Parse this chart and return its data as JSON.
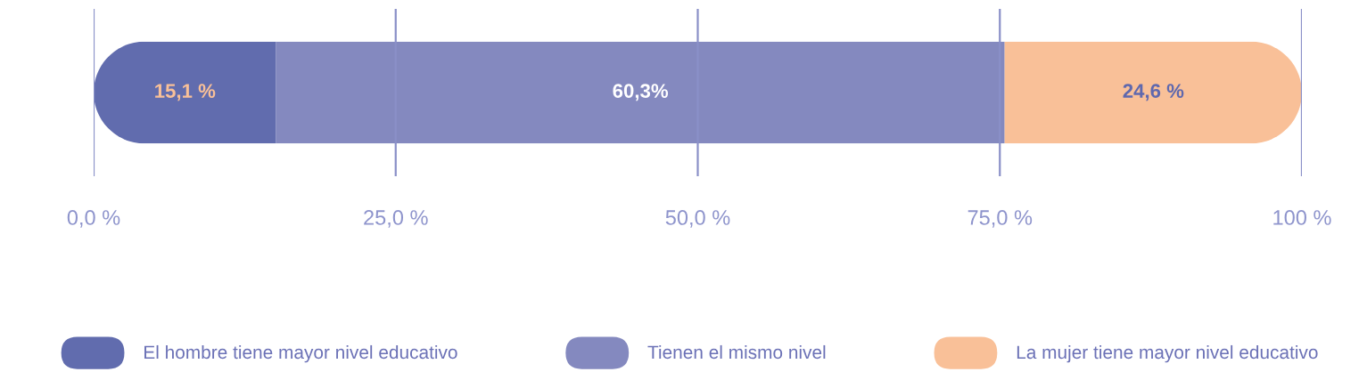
{
  "chart_data": {
    "type": "bar",
    "orientation": "horizontal",
    "stacked": true,
    "categories": [
      null
    ],
    "series": [
      {
        "name": "El hombre tiene mayor nivel educativo",
        "color": "#616cae",
        "values": [
          15.1
        ],
        "value_labels": [
          "15,1 %"
        ]
      },
      {
        "name": "Tienen el mismo nivel",
        "color": "#8489bf",
        "values": [
          60.3
        ],
        "value_labels": [
          "60,3%"
        ]
      },
      {
        "name": "La mujer tiene mayor nivel educativo",
        "color": "#f9c098",
        "values": [
          24.6
        ],
        "value_labels": [
          "24,6 %"
        ]
      }
    ],
    "xlim": [
      0,
      100
    ],
    "xticks": [
      {
        "value": 0,
        "label": "0,0 %"
      },
      {
        "value": 25,
        "label": "25,0 %"
      },
      {
        "value": 50,
        "label": "50,0 %"
      },
      {
        "value": 75,
        "label": "75,0 %"
      },
      {
        "value": 100,
        "label": "100 %"
      }
    ],
    "tick_labels": "x",
    "grid": "x",
    "legend": "bottom"
  }
}
